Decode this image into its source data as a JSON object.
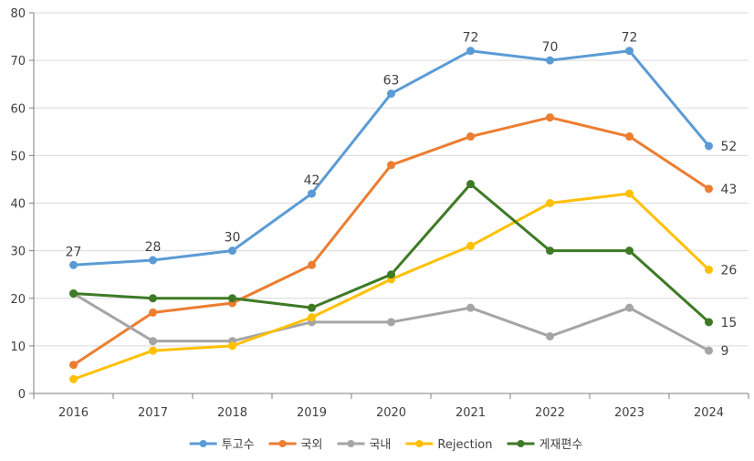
{
  "chart_data": {
    "type": "line",
    "categories": [
      "2016",
      "2017",
      "2018",
      "2019",
      "2020",
      "2021",
      "2022",
      "2023",
      "2024"
    ],
    "ylim": [
      0,
      80
    ],
    "yticks": [
      0,
      10,
      20,
      30,
      40,
      50,
      60,
      70,
      80
    ],
    "grid": "horizontal",
    "legend_position": "bottom",
    "series": [
      {
        "name": "투고수",
        "color": "#5B9BD5",
        "values": [
          27,
          28,
          30,
          42,
          63,
          72,
          70,
          72,
          52
        ],
        "labels": [
          "27",
          "28",
          "30",
          "42",
          "63",
          "72",
          "70",
          "72",
          "52"
        ],
        "label_placement": "above-last-right"
      },
      {
        "name": "국외",
        "color": "#ED7D31",
        "values": [
          6,
          17,
          19,
          27,
          48,
          54,
          58,
          54,
          43
        ],
        "labels": [
          "",
          "",
          "",
          "",
          "",
          "",
          "",
          "",
          "43"
        ],
        "label_placement": "last-right"
      },
      {
        "name": "국내",
        "color": "#A5A5A5",
        "values": [
          21,
          11,
          11,
          15,
          15,
          18,
          12,
          18,
          9
        ],
        "labels": [
          "",
          "",
          "",
          "",
          "",
          "",
          "",
          "",
          "9"
        ],
        "label_placement": "last-right"
      },
      {
        "name": "Rejection",
        "color": "#FFC000",
        "values": [
          3,
          9,
          10,
          16,
          24,
          31,
          40,
          42,
          26
        ],
        "labels": [
          "",
          "",
          "",
          "",
          "",
          "",
          "",
          "",
          "26"
        ],
        "label_placement": "last-right"
      },
      {
        "name": "게재편수",
        "color": "#3E7A26",
        "values": [
          21,
          20,
          20,
          18,
          25,
          44,
          30,
          30,
          15
        ],
        "labels": [
          "",
          "",
          "",
          "",
          "",
          "",
          "",
          "",
          "15"
        ],
        "label_placement": "last-right"
      }
    ]
  }
}
